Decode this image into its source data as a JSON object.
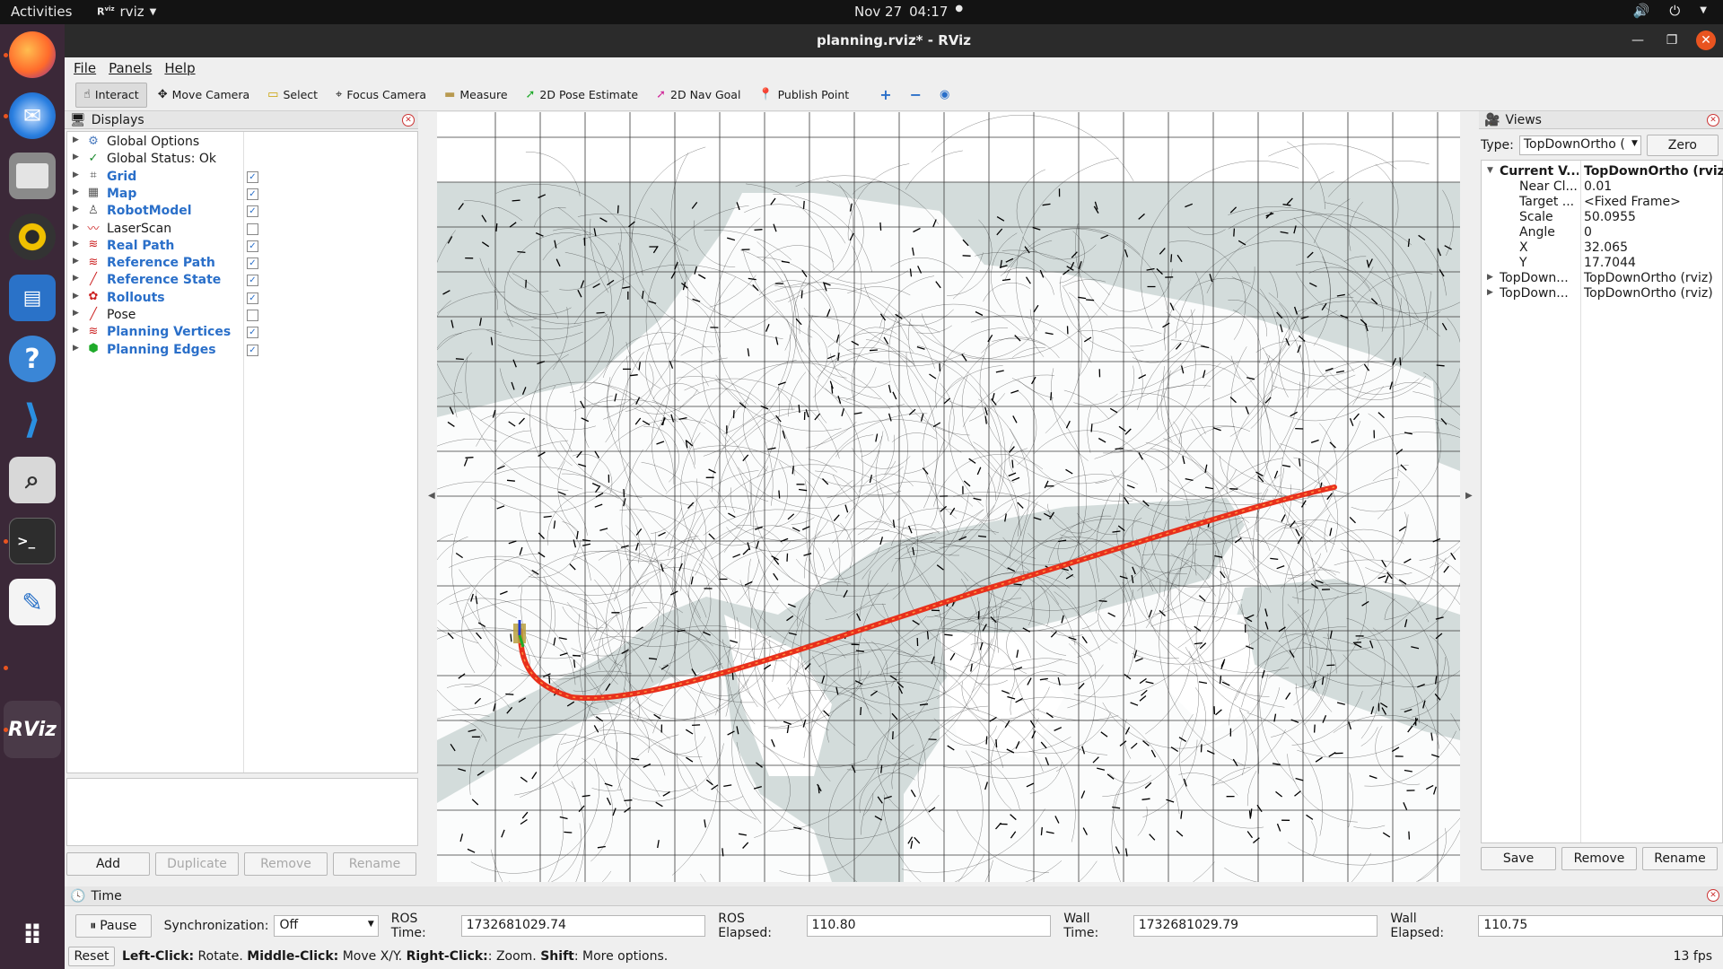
{
  "topbar": {
    "activities": "Activities",
    "app_name": "rviz",
    "date": "Nov 27",
    "time": "04:17"
  },
  "dock": {
    "items": [
      "firefox-icon",
      "thunderbird-icon",
      "files-icon",
      "rhythmbox-icon",
      "writer-icon",
      "help-icon",
      "vscode-icon",
      "search-icon",
      "terminal-icon",
      "text-editor-icon",
      "rviz-icon",
      "app-grid-icon"
    ],
    "rviz_label": "RViz"
  },
  "window": {
    "title": "planning.rviz* - RViz"
  },
  "menu": [
    "File",
    "Panels",
    "Help"
  ],
  "toolbar": [
    {
      "label": "Interact",
      "icon": "☝",
      "active": true
    },
    {
      "label": "Move Camera",
      "icon": "✥",
      "active": false
    },
    {
      "label": "Select",
      "icon": "▭",
      "active": false
    },
    {
      "label": "Focus Camera",
      "icon": "⌖",
      "active": false
    },
    {
      "label": "Measure",
      "icon": "▬",
      "active": false
    },
    {
      "label": "2D Pose Estimate",
      "icon": "➚",
      "active": false
    },
    {
      "label": "2D Nav Goal",
      "icon": "➚",
      "active": false
    },
    {
      "label": "Publish Point",
      "icon": "📍",
      "active": false
    }
  ],
  "displays": {
    "title": "Displays",
    "items": [
      {
        "label": "Global Options",
        "icon": "⚙",
        "icon_color": "#4a7bbf",
        "blue": false,
        "check": null
      },
      {
        "label": "Global Status: Ok",
        "icon": "✓",
        "icon_color": "#1b8a2e",
        "blue": false,
        "check": null
      },
      {
        "label": "Grid",
        "icon": "⌗",
        "icon_color": "#555555",
        "blue": true,
        "check": true
      },
      {
        "label": "Map",
        "icon": "▦",
        "icon_color": "#555555",
        "blue": true,
        "check": true
      },
      {
        "label": "RobotModel",
        "icon": "♙",
        "icon_color": "#555555",
        "blue": true,
        "check": true
      },
      {
        "label": "LaserScan",
        "icon": "〰",
        "icon_color": "#cc2222",
        "blue": false,
        "check": false
      },
      {
        "label": "Real Path",
        "icon": "≋",
        "icon_color": "#cc2222",
        "blue": true,
        "check": true
      },
      {
        "label": "Reference Path",
        "icon": "≋",
        "icon_color": "#cc2222",
        "blue": true,
        "check": true
      },
      {
        "label": "Reference State",
        "icon": "╱",
        "icon_color": "#cc2222",
        "blue": true,
        "check": true
      },
      {
        "label": "Rollouts",
        "icon": "✿",
        "icon_color": "#cc2222",
        "blue": true,
        "check": true
      },
      {
        "label": "Pose",
        "icon": "╱",
        "icon_color": "#cc2222",
        "blue": false,
        "check": false
      },
      {
        "label": "Planning Vertices",
        "icon": "≋",
        "icon_color": "#cc2222",
        "blue": true,
        "check": true
      },
      {
        "label": "Planning Edges",
        "icon": "⬢",
        "icon_color": "#1faa2a",
        "blue": true,
        "check": true
      }
    ],
    "buttons": [
      "Add",
      "Duplicate",
      "Remove",
      "Rename"
    ]
  },
  "views": {
    "title": "Views",
    "type_label": "Type:",
    "type_value": "TopDownOrtho (",
    "zero": "Zero",
    "rows": [
      {
        "key": "Current V...",
        "value": "TopDownOrtho (rviz)",
        "bold": true,
        "indent": false,
        "arrow": "▼"
      },
      {
        "key": "Near Cl...",
        "value": "0.01",
        "bold": false,
        "indent": true,
        "arrow": ""
      },
      {
        "key": "Target ...",
        "value": "<Fixed Frame>",
        "bold": false,
        "indent": true,
        "arrow": ""
      },
      {
        "key": "Scale",
        "value": "50.0955",
        "bold": false,
        "indent": true,
        "arrow": ""
      },
      {
        "key": "Angle",
        "value": "0",
        "bold": false,
        "indent": true,
        "arrow": ""
      },
      {
        "key": "X",
        "value": "32.065",
        "bold": false,
        "indent": true,
        "arrow": ""
      },
      {
        "key": "Y",
        "value": "17.7044",
        "bold": false,
        "indent": true,
        "arrow": ""
      },
      {
        "key": "TopDown...",
        "value": "TopDownOrtho (rviz)",
        "bold": false,
        "indent": false,
        "arrow": "▶"
      },
      {
        "key": "TopDown...",
        "value": "TopDownOrtho (rviz)",
        "bold": false,
        "indent": false,
        "arrow": "▶"
      }
    ],
    "buttons": [
      "Save",
      "Remove",
      "Rename"
    ]
  },
  "time": {
    "title": "Time",
    "pause": "Pause",
    "sync_label": "Synchronization:",
    "sync_value": "Off",
    "ros_time_label": "ROS Time:",
    "ros_time": "1732681029.74",
    "ros_elapsed_label": "ROS Elapsed:",
    "ros_elapsed": "110.80",
    "wall_time_label": "Wall Time:",
    "wall_time": "1732681029.79",
    "wall_elapsed_label": "Wall Elapsed:",
    "wall_elapsed": "110.75"
  },
  "status": {
    "reset": "Reset",
    "help_parts": [
      {
        "t": "Left-Click:",
        "b": true
      },
      {
        "t": " Rotate. ",
        "b": false
      },
      {
        "t": "Middle-Click:",
        "b": true
      },
      {
        "t": " Move X/Y. ",
        "b": false
      },
      {
        "t": "Right-Click:",
        "b": true
      },
      {
        "t": ": Zoom. ",
        "b": false
      },
      {
        "t": "Shift",
        "b": true
      },
      {
        "t": ": More options.",
        "b": false
      }
    ],
    "fps": "13 fps"
  },
  "colors": {
    "path": "#e8301c",
    "map_free": "#ffffff",
    "map_unknown": "#d3dcdb",
    "accent": "#e95420"
  }
}
